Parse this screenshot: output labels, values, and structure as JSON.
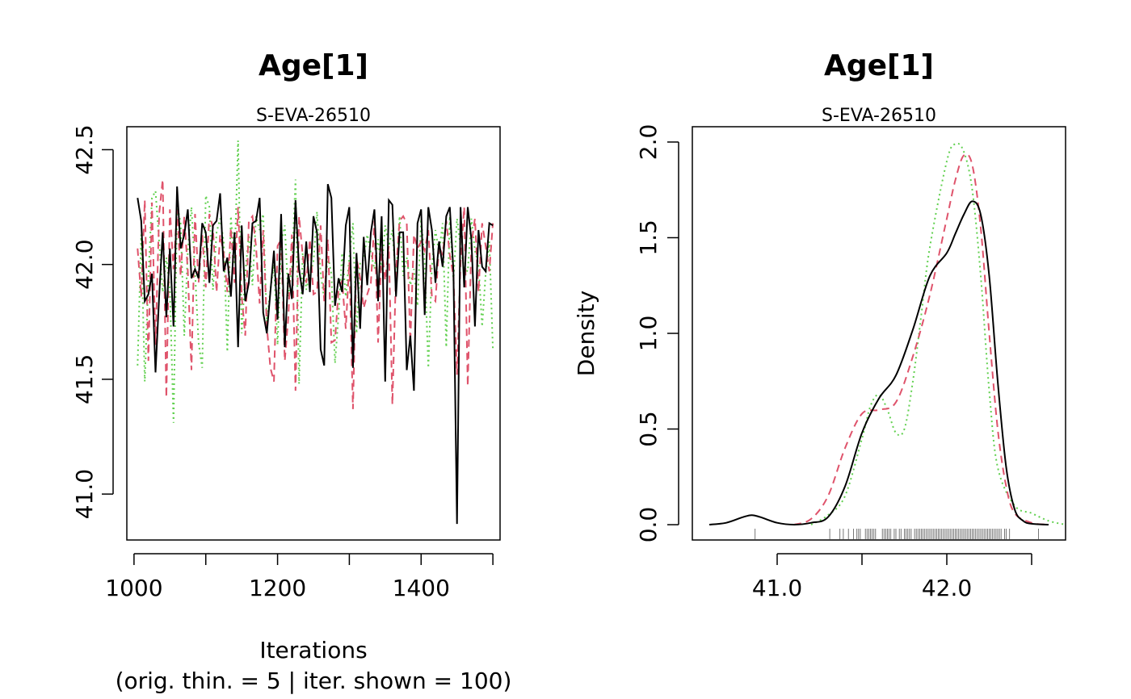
{
  "chart_data": [
    {
      "type": "line",
      "panel": "trace",
      "title": "Age[1]",
      "subtitle": "S-EVA-26510",
      "xlabel": "Iterations",
      "xlabel2": "(orig. thin. = 5 | iter. shown = 100)",
      "ylabel": "",
      "xlim": [
        990,
        1510
      ],
      "ylim": [
        40.8,
        42.6
      ],
      "xticks": [
        1000,
        1200,
        1400
      ],
      "xtick_positions": [
        1000,
        1100,
        1200,
        1300,
        1400,
        1500
      ],
      "yticks": [
        "41.0",
        "41.5",
        "42.0",
        "42.5"
      ],
      "ytick_values": [
        41.0,
        41.5,
        42.0,
        42.5
      ],
      "grid": false,
      "x_start": 1005,
      "x_step": 5,
      "series": [
        {
          "color": "#000000",
          "dash": "solid",
          "values": [
            42.29,
            42.19,
            41.84,
            41.87,
            41.96,
            41.53,
            41.86,
            42.14,
            41.77,
            42.07,
            41.73,
            42.34,
            42.07,
            42.13,
            42.24,
            41.94,
            41.98,
            41.94,
            42.18,
            42.14,
            41.92,
            42.17,
            42.19,
            42.31,
            41.97,
            42.03,
            41.86,
            42.14,
            41.64,
            42.17,
            41.84,
            41.92,
            42.18,
            42.19,
            42.29,
            41.79,
            41.7,
            41.88,
            42.06,
            41.76,
            42.22,
            41.64,
            41.96,
            41.85,
            42.28,
            41.98,
            41.87,
            42.1,
            41.88,
            42.21,
            42.14,
            41.63,
            41.56,
            42.35,
            42.29,
            41.82,
            41.94,
            41.88,
            42.17,
            42.25,
            41.55,
            42.05,
            41.72,
            42.12,
            41.91,
            42.14,
            42.24,
            41.84,
            42.21,
            41.49,
            42.28,
            42.26,
            41.86,
            42.14,
            42.14,
            41.54,
            41.69,
            41.45,
            42.18,
            42.24,
            41.78,
            42.25,
            42.15,
            41.92,
            42.1,
            41.99,
            42.21,
            42.25,
            41.97,
            40.87,
            42.25,
            41.9,
            42.25,
            42.11,
            41.73,
            42.15,
            41.99,
            41.97,
            42.18,
            42.17
          ]
        },
        {
          "color": "#DF536B",
          "dash": "dashed",
          "values": [
            42.07,
            41.86,
            42.28,
            41.58,
            42.27,
            41.65,
            42.22,
            42.37,
            41.42,
            42.24,
            41.98,
            42.24,
            41.95,
            42.21,
            41.97,
            41.54,
            42.22,
            41.92,
            42.13,
            41.9,
            42.22,
            42.16,
            41.88,
            42.13,
            42.05,
            41.88,
            42.16,
            41.92,
            42.25,
            41.86,
            41.69,
            42.19,
            42.21,
            42.08,
            41.83,
            42.15,
            41.73,
            41.55,
            41.49,
            42.08,
            42.11,
            41.58,
            41.77,
            42.13,
            41.45,
            42.21,
            42.04,
            41.92,
            42.11,
            41.87,
            41.88,
            42.17,
            41.84,
            42.11,
            41.66,
            41.67,
            41.89,
            41.93,
            41.72,
            42.01,
            41.37,
            42.03,
            41.94,
            41.81,
            41.87,
            41.92,
            42.19,
            41.66,
            42.07,
            41.93,
            42.08,
            41.39,
            41.97,
            42.19,
            42.21,
            42.18,
            41.66,
            42.13,
            42.07,
            42.1,
            42.06,
            42.15,
            41.86,
            41.84,
            42.08,
            42.04,
            42.19,
            42.04,
            41.95,
            41.52,
            42.01,
            42.25,
            41.47,
            42.09,
            42.2,
            41.88,
            42.18,
            42.08,
            41.97,
            42.18
          ]
        },
        {
          "color": "#61D04F",
          "dash": "dotted",
          "values": [
            41.56,
            42.13,
            41.49,
            41.94,
            42.29,
            42.32,
            42.1,
            41.88,
            42.03,
            41.89,
            41.31,
            42.26,
            42.18,
            41.69,
            42.06,
            42.25,
            41.97,
            41.66,
            41.55,
            42.3,
            42.25,
            41.89,
            42.14,
            42.2,
            42.1,
            41.62,
            42.21,
            42.0,
            42.54,
            41.7,
            41.96,
            42.13,
            41.91,
            42.21,
            42.15,
            42.22,
            41.75,
            41.89,
            42.0,
            41.65,
            42.09,
            42.17,
            41.86,
            41.99,
            42.37,
            41.48,
            42.05,
            41.89,
            41.96,
            42.01,
            42.23,
            41.96,
            41.85,
            42.04,
            41.96,
            41.57,
            41.78,
            42.05,
            41.86,
            42.03,
            42.18,
            41.7,
            42.01,
            42.02,
            42.13,
            42.05,
            41.98,
            42.11,
            41.97,
            42.17,
            42.08,
            42.15,
            41.93,
            42.21,
            41.95,
            42.03,
            41.91,
            41.98,
            41.82,
            42.2,
            42.01,
            41.55,
            41.99,
            42.15,
            42.05,
            42.18,
            41.64,
            42.21,
            41.93,
            42.2,
            42.08,
            41.98,
            41.97,
            42.2,
            42.06,
            42.0,
            41.73,
            41.96,
            42.1,
            41.63
          ]
        }
      ]
    },
    {
      "type": "line",
      "panel": "density",
      "title": "Age[1]",
      "subtitle": "S-EVA-26510",
      "xlabel": "",
      "ylabel": "Density",
      "xlim": [
        40.5,
        42.7
      ],
      "ylim": [
        -0.08,
        2.08
      ],
      "xticks": [
        "41.0",
        "42.0"
      ],
      "xtick_values": [
        41.0,
        42.0
      ],
      "xtick_positions": [
        41.0,
        41.5,
        42.0,
        42.5
      ],
      "yticks": [
        "0.0",
        "0.5",
        "1.0",
        "1.5",
        "2.0"
      ],
      "ytick_values": [
        0.0,
        0.5,
        1.0,
        1.5,
        2.0
      ],
      "grid": false,
      "series": [
        {
          "color": "#000000",
          "dash": "solid",
          "x": [
            40.6,
            40.7,
            40.8,
            40.85,
            40.9,
            41.0,
            41.1,
            41.2,
            41.3,
            41.4,
            41.5,
            41.6,
            41.7,
            41.8,
            41.9,
            42.0,
            42.05,
            42.1,
            42.15,
            42.2,
            42.25,
            42.3,
            42.35,
            42.4,
            42.45,
            42.5,
            42.6
          ],
          "y": [
            0.0,
            0.01,
            0.04,
            0.05,
            0.04,
            0.01,
            0.0,
            0.01,
            0.04,
            0.2,
            0.48,
            0.66,
            0.78,
            1.02,
            1.3,
            1.42,
            1.52,
            1.62,
            1.69,
            1.62,
            1.3,
            0.75,
            0.3,
            0.08,
            0.02,
            0.005,
            0.0
          ]
        },
        {
          "color": "#DF536B",
          "dash": "dashed",
          "x": [
            41.1,
            41.2,
            41.3,
            41.4,
            41.5,
            41.6,
            41.7,
            41.8,
            41.9,
            42.0,
            42.05,
            42.1,
            42.15,
            42.2,
            42.25,
            42.3,
            42.35,
            42.4,
            42.5,
            42.6
          ],
          "y": [
            0.0,
            0.03,
            0.15,
            0.4,
            0.58,
            0.6,
            0.64,
            0.88,
            1.2,
            1.6,
            1.8,
            1.93,
            1.88,
            1.55,
            1.0,
            0.5,
            0.2,
            0.06,
            0.01,
            0.0
          ]
        },
        {
          "color": "#61D04F",
          "dash": "dotted",
          "x": [
            41.2,
            41.3,
            41.4,
            41.5,
            41.55,
            41.6,
            41.65,
            41.7,
            41.75,
            41.8,
            41.85,
            41.9,
            42.0,
            42.05,
            42.1,
            42.15,
            42.2,
            42.25,
            42.3,
            42.4,
            42.5,
            42.6,
            42.7
          ],
          "y": [
            0.0,
            0.05,
            0.15,
            0.45,
            0.62,
            0.68,
            0.6,
            0.48,
            0.5,
            0.75,
            1.1,
            1.45,
            1.9,
            1.99,
            1.95,
            1.75,
            1.3,
            0.7,
            0.3,
            0.1,
            0.06,
            0.02,
            0.0
          ]
        }
      ],
      "rug_color": "#555555"
    }
  ]
}
